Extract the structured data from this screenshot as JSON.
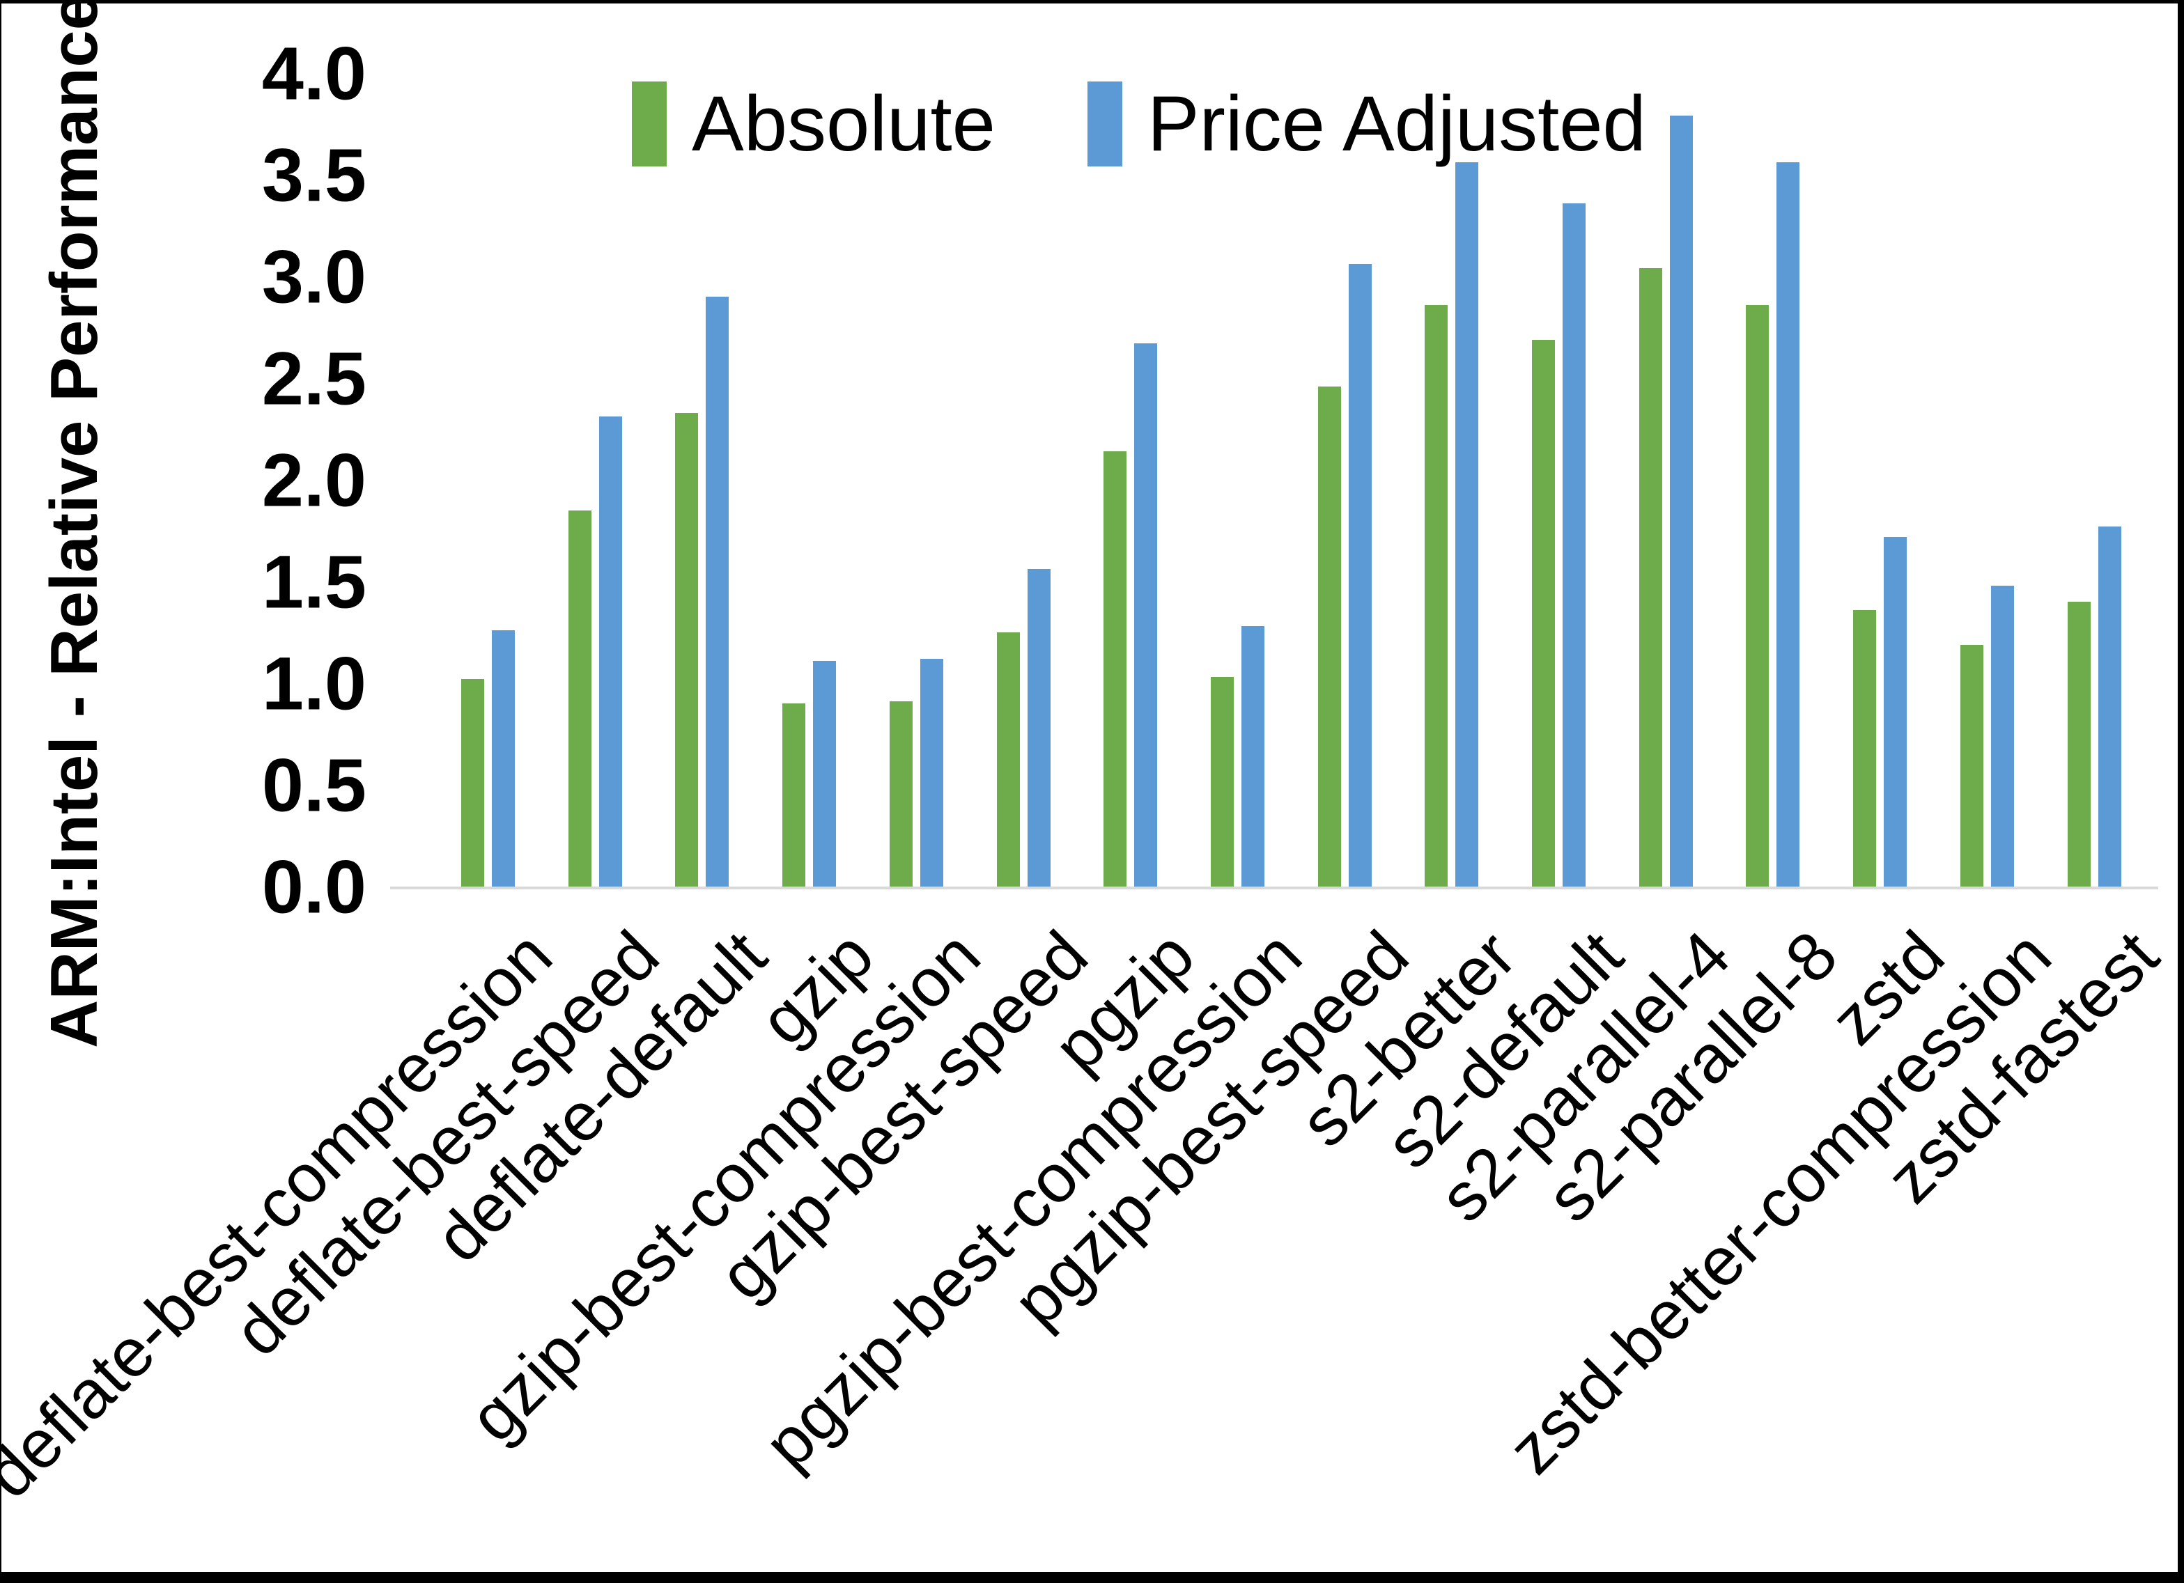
{
  "chart_data": {
    "type": "bar",
    "title": "",
    "ylabel": "ARM:Intel - Relative Performance",
    "xlabel": "",
    "ylim": [
      0.0,
      4.0
    ],
    "ytick_step": 0.5,
    "ytick_labels": [
      "0.0",
      "0.5",
      "1.0",
      "1.5",
      "2.0",
      "2.5",
      "3.0",
      "3.5",
      "4.0"
    ],
    "grid": false,
    "legend_position": "top-center",
    "categories": [
      "deflate-best-compression",
      "deflate-best-speed",
      "deflate-default",
      "gzip",
      "gzip-best-compression",
      "gzip-best-speed",
      "pgzip",
      "pgzip-best-compression",
      "pgzip-best-speed",
      "s2-better",
      "s2-default",
      "s2-parallel-4",
      "s2-parallel-8",
      "zstd",
      "zstd-better-compression",
      "zstd-fastest"
    ],
    "series": [
      {
        "name": "Absolute",
        "color": "#6eac4b",
        "values": [
          1.02,
          1.85,
          2.33,
          0.9,
          0.91,
          1.25,
          2.14,
          1.03,
          2.46,
          2.86,
          2.69,
          3.04,
          2.86,
          1.36,
          1.19,
          1.4
        ]
      },
      {
        "name": "Price Adjusted",
        "color": "#5b9ad5",
        "values": [
          1.26,
          2.31,
          2.9,
          1.11,
          1.12,
          1.56,
          2.67,
          1.28,
          3.06,
          3.56,
          3.36,
          3.79,
          3.56,
          1.72,
          1.48,
          1.77
        ]
      }
    ],
    "axis_line_color": "#d9d9d9",
    "text_color": "#000000"
  },
  "legend": {
    "absolute_label": "Absolute",
    "price_adjusted_label": "Price Adjusted"
  },
  "y_axis": {
    "title": "ARM:Intel - Relative Performance"
  }
}
